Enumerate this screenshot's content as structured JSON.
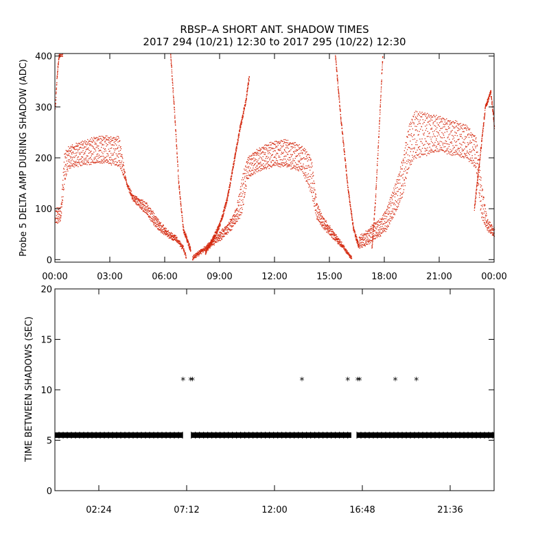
{
  "title": {
    "line1": "RBSP–A SHORT ANT. SHADOW TIMES",
    "line2": "2017 294 (10/21) 12:30 to 2017 295 (10/22) 12:30"
  },
  "colors": {
    "amp_points": "#d42a10",
    "period_points": "#000000",
    "axes": "#000000"
  },
  "chart_data": [
    {
      "type": "scatter",
      "ylabel": "Probe 5 DELTA AMP DURING SHADOW (ADC)",
      "xlabel": "",
      "xlim": [
        0,
        24
      ],
      "ylim": [
        -5,
        405
      ],
      "x_unit": "hours",
      "xticks": [
        0,
        3,
        6,
        9,
        12,
        15,
        18,
        21,
        24
      ],
      "xtick_labels": [
        "00:00",
        "03:00",
        "06:00",
        "09:00",
        "12:00",
        "15:00",
        "18:00",
        "21:00",
        "00:00"
      ],
      "yticks": [
        0,
        100,
        200,
        300,
        400
      ],
      "ytick_labels": [
        "0",
        "100",
        "200",
        "300",
        "400"
      ],
      "series": [
        {
          "role": "oscillating band (points alternate between low and high)",
          "x": [
            0.0,
            0.3,
            0.5,
            0.7,
            1.0,
            1.5,
            2.0,
            2.5,
            3.0,
            3.5,
            3.9,
            4.2,
            4.6,
            5.0,
            5.4,
            5.8,
            6.2,
            6.6,
            7.0,
            7.15
          ],
          "low": [
            70,
            80,
            150,
            180,
            185,
            188,
            190,
            192,
            190,
            185,
            150,
            120,
            105,
            90,
            70,
            55,
            45,
            38,
            20,
            5
          ],
          "high": [
            100,
            100,
            210,
            220,
            225,
            232,
            238,
            242,
            242,
            240,
            150,
            130,
            120,
            110,
            90,
            70,
            55,
            45,
            25,
            8
          ]
        },
        {
          "role": "oscillating band (points alternate between low and high)",
          "x": [
            7.5,
            7.8,
            8.2,
            8.6,
            9.0,
            9.3,
            9.6,
            9.9,
            10.2,
            10.5,
            11.0,
            11.5,
            12.0,
            12.5,
            13.0,
            13.5,
            14.0,
            14.3,
            14.6,
            15.0,
            15.4,
            15.7,
            16.0,
            16.2
          ],
          "low": [
            2,
            10,
            20,
            30,
            40,
            50,
            60,
            75,
            90,
            160,
            175,
            180,
            185,
            185,
            180,
            175,
            130,
            80,
            65,
            50,
            35,
            25,
            10,
            2
          ],
          "high": [
            5,
            15,
            25,
            40,
            55,
            65,
            80,
            100,
            160,
            200,
            215,
            225,
            232,
            235,
            230,
            222,
            200,
            110,
            85,
            65,
            45,
            30,
            15,
            5
          ]
        },
        {
          "role": "oscillating band (points alternate between low and high)",
          "x": [
            16.6,
            17.0,
            17.4,
            17.8,
            18.1,
            18.4,
            18.7,
            19.0,
            19.3,
            19.6,
            20.0,
            20.5,
            21.0,
            21.5,
            22.0,
            22.5,
            23.0,
            23.3,
            23.6,
            24.0
          ],
          "low": [
            25,
            30,
            40,
            50,
            60,
            80,
            100,
            130,
            180,
            200,
            205,
            210,
            215,
            210,
            205,
            200,
            180,
            80,
            60,
            45
          ],
          "high": [
            45,
            55,
            70,
            80,
            100,
            130,
            160,
            200,
            260,
            290,
            290,
            285,
            280,
            275,
            270,
            262,
            240,
            150,
            80,
            60
          ]
        },
        {
          "role": "steep rising/falling sweep",
          "x": [
            0.0,
            0.1,
            0.2,
            0.3,
            0.4
          ],
          "y": [
            300,
            360,
            400,
            405,
            405
          ]
        },
        {
          "role": "steep rising/falling sweep",
          "x": [
            6.3,
            6.5,
            6.75,
            7.0,
            7.2,
            7.4
          ],
          "y": [
            405,
            300,
            150,
            60,
            40,
            20
          ]
        },
        {
          "role": "steep rising/falling sweep",
          "x": [
            8.2,
            8.6,
            9.0,
            9.4,
            9.8,
            10.1,
            10.4,
            10.6
          ],
          "y": [
            15,
            40,
            70,
            120,
            200,
            260,
            310,
            360
          ]
        },
        {
          "role": "steep rising/falling sweep",
          "x": [
            15.3,
            15.6,
            16.0,
            16.3,
            16.6
          ],
          "y": [
            405,
            280,
            140,
            60,
            25
          ]
        },
        {
          "role": "steep rising/falling sweep",
          "x": [
            17.3,
            17.5,
            17.7,
            17.9
          ],
          "y": [
            20,
            120,
            260,
            405
          ]
        },
        {
          "role": "steep rising/falling sweep",
          "x": [
            22.9,
            23.2,
            23.5,
            23.8,
            24.0
          ],
          "y": [
            100,
            200,
            300,
            330,
            260
          ]
        }
      ]
    },
    {
      "type": "scatter",
      "ylabel": "TIME BETWEEN SHADOWS (SEC)",
      "xlabel": "",
      "xlim": [
        0,
        24
      ],
      "ylim": [
        0,
        20
      ],
      "x_unit": "hours",
      "xticks": [
        2.4,
        7.2,
        12.0,
        16.8,
        21.6
      ],
      "xtick_labels": [
        "02:24",
        "07:12",
        "12:00",
        "16:48",
        "21:36"
      ],
      "yticks": [
        0,
        5,
        10,
        15,
        20
      ],
      "ytick_labels": [
        "0",
        "5",
        "10",
        "15",
        "20"
      ],
      "baseline_y": 5.5,
      "baseline_segments": [
        [
          0.0,
          7.0
        ],
        [
          7.45,
          16.2
        ],
        [
          16.5,
          24.0
        ]
      ],
      "points": [
        {
          "x": 7.0,
          "y": 11
        },
        {
          "x": 7.42,
          "y": 11
        },
        {
          "x": 7.52,
          "y": 11
        },
        {
          "x": 13.5,
          "y": 11
        },
        {
          "x": 16.0,
          "y": 11
        },
        {
          "x": 16.55,
          "y": 11
        },
        {
          "x": 16.65,
          "y": 11
        },
        {
          "x": 18.6,
          "y": 11
        },
        {
          "x": 19.75,
          "y": 11
        }
      ]
    }
  ]
}
